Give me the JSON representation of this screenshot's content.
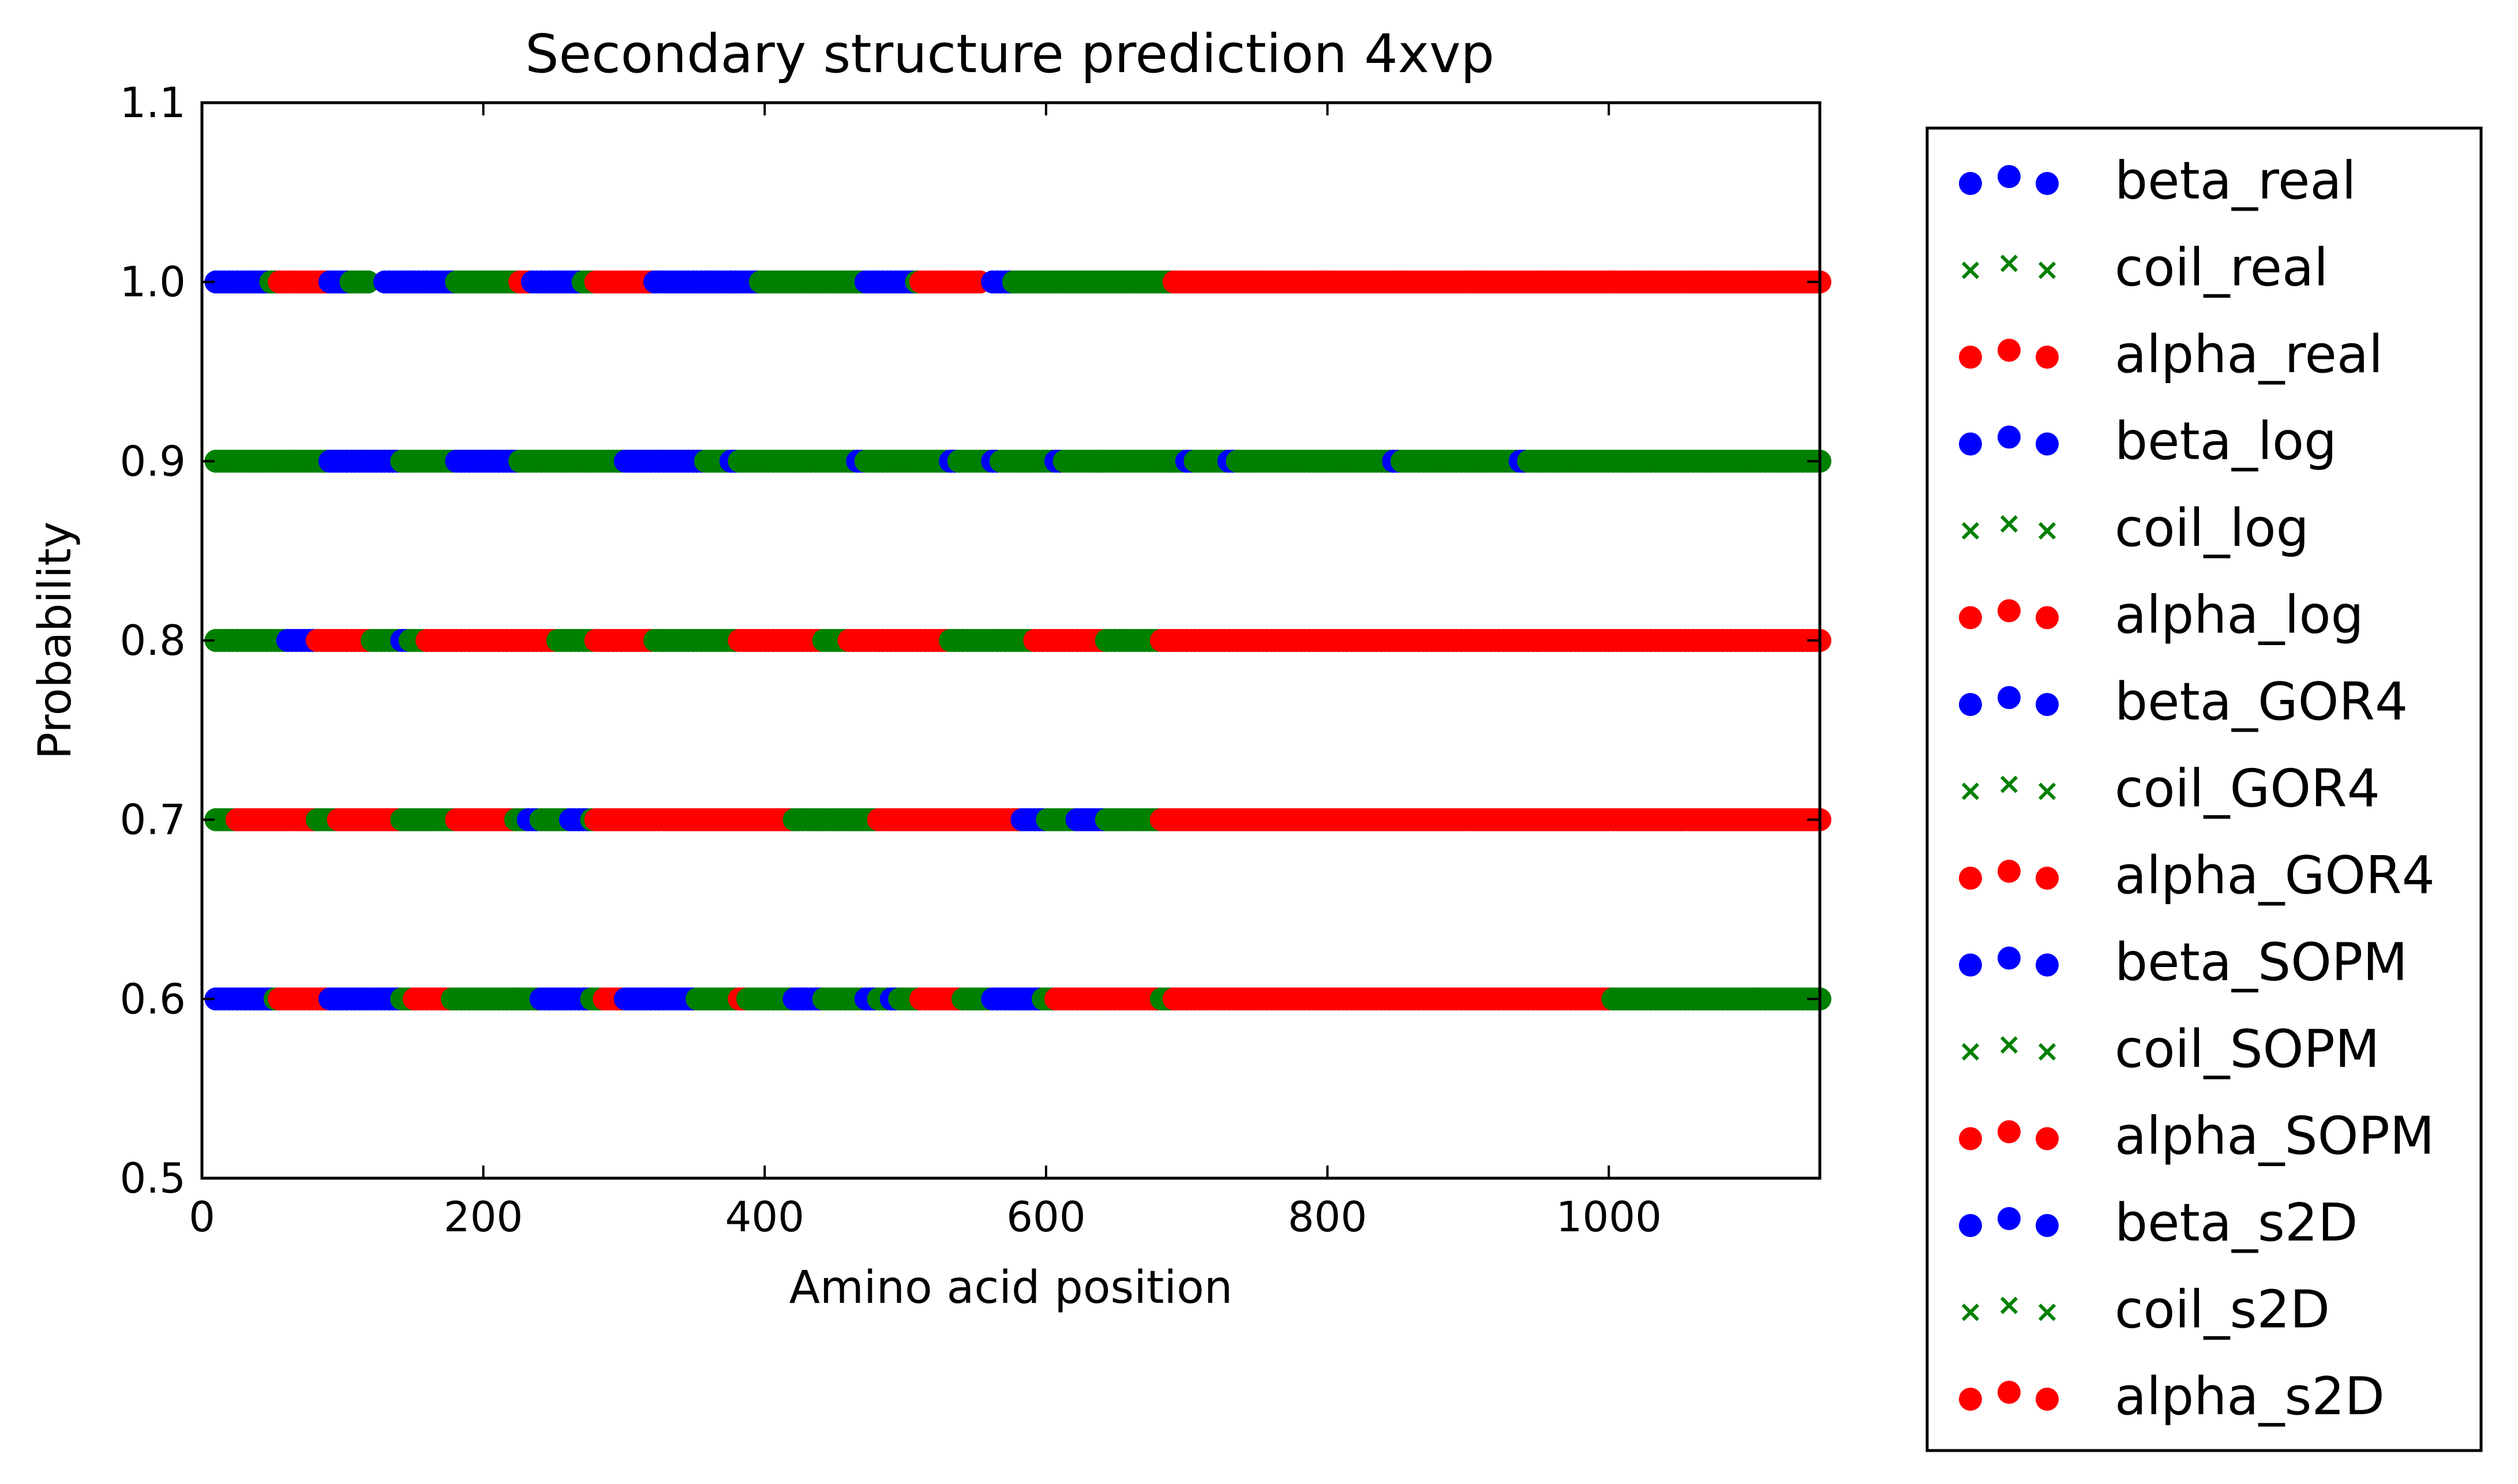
{
  "chart_data": {
    "type": "scatter",
    "title": "Secondary structure prediction 4xvp",
    "xlabel": "Amino acid position",
    "ylabel": "Probability",
    "xlim": [
      0,
      1150
    ],
    "ylim": [
      0.5,
      1.1
    ],
    "xticks": [
      "0",
      "200",
      "400",
      "600",
      "800",
      "1000"
    ],
    "yticks": [
      "0.5",
      "0.6",
      "0.7",
      "0.8",
      "0.9",
      "1.0",
      "1.1"
    ],
    "xtick_values": [
      0,
      200,
      400,
      600,
      800,
      1000
    ],
    "ytick_values": [
      0.5,
      0.6,
      0.7,
      0.8,
      0.9,
      1.0,
      1.1
    ],
    "legend_position": "outside-right",
    "grid": false,
    "colors": {
      "beta": "#0000ff",
      "coil": "#008000",
      "alpha": "#ff0000"
    },
    "rows": [
      {
        "method": "real",
        "y": 1.0,
        "beta": [
          [
            10,
            48
          ],
          [
            90,
            105
          ],
          [
            130,
            180
          ],
          [
            230,
            270
          ],
          [
            320,
            395
          ],
          [
            470,
            505
          ],
          [
            560,
            575
          ]
        ],
        "coil": [
          [
            48,
            55
          ],
          [
            105,
            120
          ],
          [
            180,
            225
          ],
          [
            270,
            280
          ],
          [
            395,
            470
          ],
          [
            505,
            510
          ],
          [
            575,
            690
          ]
        ],
        "alpha": [
          [
            55,
            90
          ],
          [
            225,
            232
          ],
          [
            280,
            320
          ],
          [
            510,
            555
          ],
          [
            690,
            1150
          ]
        ]
      },
      {
        "method": "log",
        "y": 0.9,
        "beta": [
          [
            90,
            140
          ],
          [
            180,
            225
          ],
          [
            300,
            355
          ],
          [
            375,
            380
          ],
          [
            465,
            470
          ],
          [
            530,
            535
          ],
          [
            560,
            565
          ],
          [
            605,
            610
          ],
          [
            700,
            705
          ],
          [
            730,
            735
          ],
          [
            845,
            850
          ],
          [
            935,
            940
          ]
        ],
        "coil": [
          [
            10,
            90
          ],
          [
            140,
            180
          ],
          [
            225,
            300
          ],
          [
            355,
            1150
          ]
        ],
        "alpha": []
      },
      {
        "method": "GOR4",
        "y": 0.8,
        "beta": [
          [
            60,
            80
          ],
          [
            140,
            145
          ],
          [
            245,
            250
          ],
          [
            410,
            415
          ],
          [
            630,
            635
          ]
        ],
        "coil": [
          [
            10,
            80
          ],
          [
            120,
            160
          ],
          [
            250,
            280
          ],
          [
            320,
            380
          ],
          [
            440,
            460
          ],
          [
            530,
            590
          ],
          [
            640,
            680
          ]
        ],
        "alpha": [
          [
            80,
            120
          ],
          [
            160,
            250
          ],
          [
            280,
            320
          ],
          [
            380,
            440
          ],
          [
            460,
            530
          ],
          [
            590,
            640
          ],
          [
            680,
            1150
          ]
        ]
      },
      {
        "method": "SOPM",
        "y": 0.7,
        "beta": [
          [
            230,
            240
          ],
          [
            260,
            275
          ],
          [
            580,
            600
          ],
          [
            620,
            640
          ]
        ],
        "coil": [
          [
            10,
            25
          ],
          [
            80,
            95
          ],
          [
            140,
            180
          ],
          [
            220,
            280
          ],
          [
            420,
            480
          ],
          [
            580,
            680
          ]
        ],
        "alpha": [
          [
            25,
            80
          ],
          [
            95,
            140
          ],
          [
            180,
            220
          ],
          [
            280,
            420
          ],
          [
            480,
            580
          ],
          [
            680,
            1150
          ]
        ]
      },
      {
        "method": "s2D",
        "y": 0.6,
        "beta": [
          [
            10,
            50
          ],
          [
            90,
            140
          ],
          [
            240,
            275
          ],
          [
            300,
            350
          ],
          [
            420,
            440
          ],
          [
            470,
            480
          ],
          [
            490,
            495
          ],
          [
            520,
            540
          ],
          [
            560,
            595
          ]
        ],
        "coil": [
          [
            50,
            55
          ],
          [
            140,
            150
          ],
          [
            175,
            285
          ],
          [
            350,
            380
          ],
          [
            385,
            510
          ],
          [
            540,
            560
          ],
          [
            595,
            605
          ],
          [
            680,
            690
          ],
          [
            1000,
            1150
          ]
        ],
        "alpha": [
          [
            55,
            90
          ],
          [
            150,
            175
          ],
          [
            285,
            300
          ],
          [
            380,
            385
          ],
          [
            510,
            540
          ],
          [
            605,
            680
          ],
          [
            690,
            1000
          ]
        ]
      }
    ],
    "legend": [
      {
        "label": "beta_real",
        "marker": "circle",
        "color": "#0000ff"
      },
      {
        "label": "coil_real",
        "marker": "x",
        "color": "#008000"
      },
      {
        "label": "alpha_real",
        "marker": "circle",
        "color": "#ff0000"
      },
      {
        "label": "beta_log",
        "marker": "circle",
        "color": "#0000ff"
      },
      {
        "label": "coil_log",
        "marker": "x",
        "color": "#008000"
      },
      {
        "label": "alpha_log",
        "marker": "circle",
        "color": "#ff0000"
      },
      {
        "label": "beta_GOR4",
        "marker": "circle",
        "color": "#0000ff"
      },
      {
        "label": "coil_GOR4",
        "marker": "x",
        "color": "#008000"
      },
      {
        "label": "alpha_GOR4",
        "marker": "circle",
        "color": "#ff0000"
      },
      {
        "label": "beta_SOPM",
        "marker": "circle",
        "color": "#0000ff"
      },
      {
        "label": "coil_SOPM",
        "marker": "x",
        "color": "#008000"
      },
      {
        "label": "alpha_SOPM",
        "marker": "circle",
        "color": "#ff0000"
      },
      {
        "label": "beta_s2D",
        "marker": "circle",
        "color": "#0000ff"
      },
      {
        "label": "coil_s2D",
        "marker": "x",
        "color": "#008000"
      },
      {
        "label": "alpha_s2D",
        "marker": "circle",
        "color": "#ff0000"
      }
    ]
  }
}
